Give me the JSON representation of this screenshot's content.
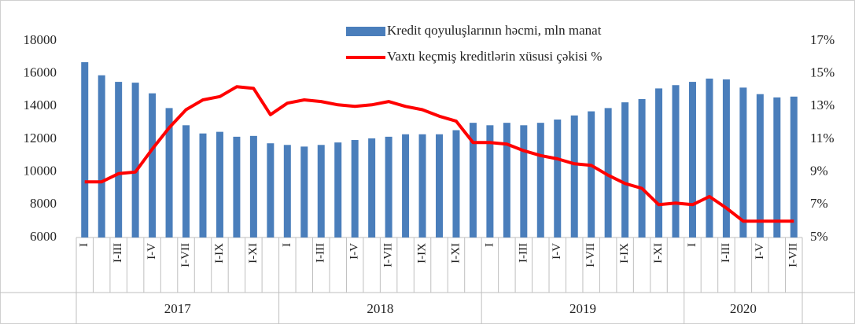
{
  "chart_data": {
    "type": "bar+line",
    "categories": [
      "I",
      null,
      "I-III",
      null,
      "I-V",
      null,
      "I-VII",
      null,
      "I-IX",
      null,
      "I-XI",
      null,
      "I",
      null,
      "I-III",
      null,
      "I-V",
      null,
      "I-VII",
      null,
      "I-IX",
      null,
      "I-XI",
      null,
      "I",
      null,
      "I-III",
      null,
      "I-V",
      null,
      "I-VII",
      null,
      "I-IX",
      null,
      "I-XI",
      null,
      "I",
      null,
      "I-III",
      null,
      "I-V",
      null,
      "I-VII"
    ],
    "years": [
      "2017",
      "2018",
      "2019",
      "2020"
    ],
    "series": [
      {
        "name": "Kredit qoyuluşlarının həcmi, mln manat",
        "type": "bar",
        "color": "#4a7ebb",
        "values": [
          16700,
          15900,
          15500,
          15450,
          14800,
          13900,
          12850,
          12350,
          12450,
          12150,
          12200,
          11750,
          11650,
          11550,
          11650,
          11800,
          11950,
          12050,
          12150,
          12300,
          12300,
          12300,
          12550,
          13000,
          12850,
          13000,
          12850,
          13000,
          13200,
          13450,
          13700,
          13900,
          14250,
          14450,
          15100,
          15300,
          15500,
          15700,
          15650,
          15150,
          14750,
          14550,
          14600
        ]
      },
      {
        "name": "Vaxtı keçmiş kreditlərin xüsusi çəkisi %",
        "type": "line",
        "axis": "y2",
        "color": "#ff0000",
        "values": [
          8.4,
          8.4,
          8.9,
          9.0,
          10.4,
          11.7,
          12.8,
          13.4,
          13.6,
          14.2,
          14.1,
          12.5,
          13.2,
          13.4,
          13.3,
          13.1,
          13.0,
          13.1,
          13.3,
          13.0,
          12.8,
          12.4,
          12.1,
          10.8,
          10.8,
          10.7,
          10.3,
          10.0,
          9.8,
          9.5,
          9.4,
          8.8,
          8.3,
          8.0,
          7.0,
          7.1,
          7.0,
          7.5,
          6.8,
          6.0,
          6.0,
          6.0,
          6.0
        ]
      }
    ],
    "ylim": [
      6000,
      18000
    ],
    "yticks": [
      6000,
      8000,
      10000,
      12000,
      14000,
      16000,
      18000
    ],
    "y2lim": [
      5,
      17
    ],
    "y2ticks": [
      {
        "value": 5,
        "label": "5%"
      },
      {
        "value": 7,
        "label": "7%"
      },
      {
        "value": 9,
        "label": "9%"
      },
      {
        "value": 11,
        "label": "11%"
      },
      {
        "value": 13,
        "label": "13%"
      },
      {
        "value": 15,
        "label": "15%"
      },
      {
        "value": 17,
        "label": "17%"
      }
    ]
  }
}
